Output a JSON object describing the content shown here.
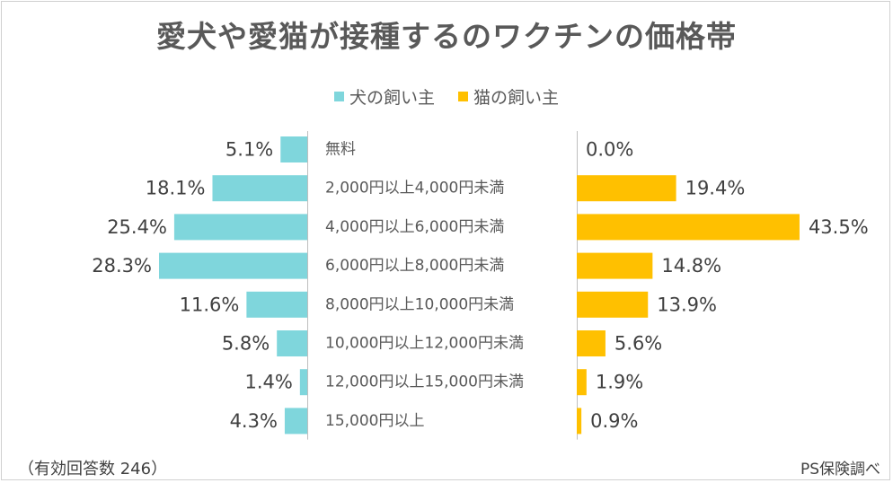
{
  "chart_data": {
    "type": "bar",
    "title": "愛犬や愛猫が接種するのワクチンの価格帯",
    "categories": [
      "無料",
      "2,000円以上4,000円未満",
      "4,000円以上6,000円未満",
      "6,000円以上8,000円未満",
      "8,000円以上10,000円未満",
      "10,000円以上12,000円未満",
      "12,000円以上15,000円未満",
      "15,000円以上"
    ],
    "series": [
      {
        "name": "犬の飼い主",
        "color": "#7fd6dc",
        "values": [
          5.1,
          18.1,
          25.4,
          28.3,
          11.6,
          5.8,
          1.4,
          4.3
        ],
        "labels": [
          "5.1%",
          "18.1%",
          "25.4%",
          "28.3%",
          "11.6%",
          "5.8%",
          "1.4%",
          "4.3%"
        ]
      },
      {
        "name": "猫の飼い主",
        "color": "#ffc000",
        "values": [
          0.0,
          19.4,
          43.5,
          14.8,
          13.9,
          5.6,
          1.9,
          0.9
        ],
        "labels": [
          "0.0%",
          "19.4%",
          "43.5%",
          "14.8%",
          "13.9%",
          "5.6%",
          "1.9%",
          "0.9%"
        ]
      }
    ],
    "unit": "%",
    "legend_position": "top"
  },
  "footer": {
    "sample_note": "（有効回答数 246）",
    "source": "PS保険調べ"
  }
}
